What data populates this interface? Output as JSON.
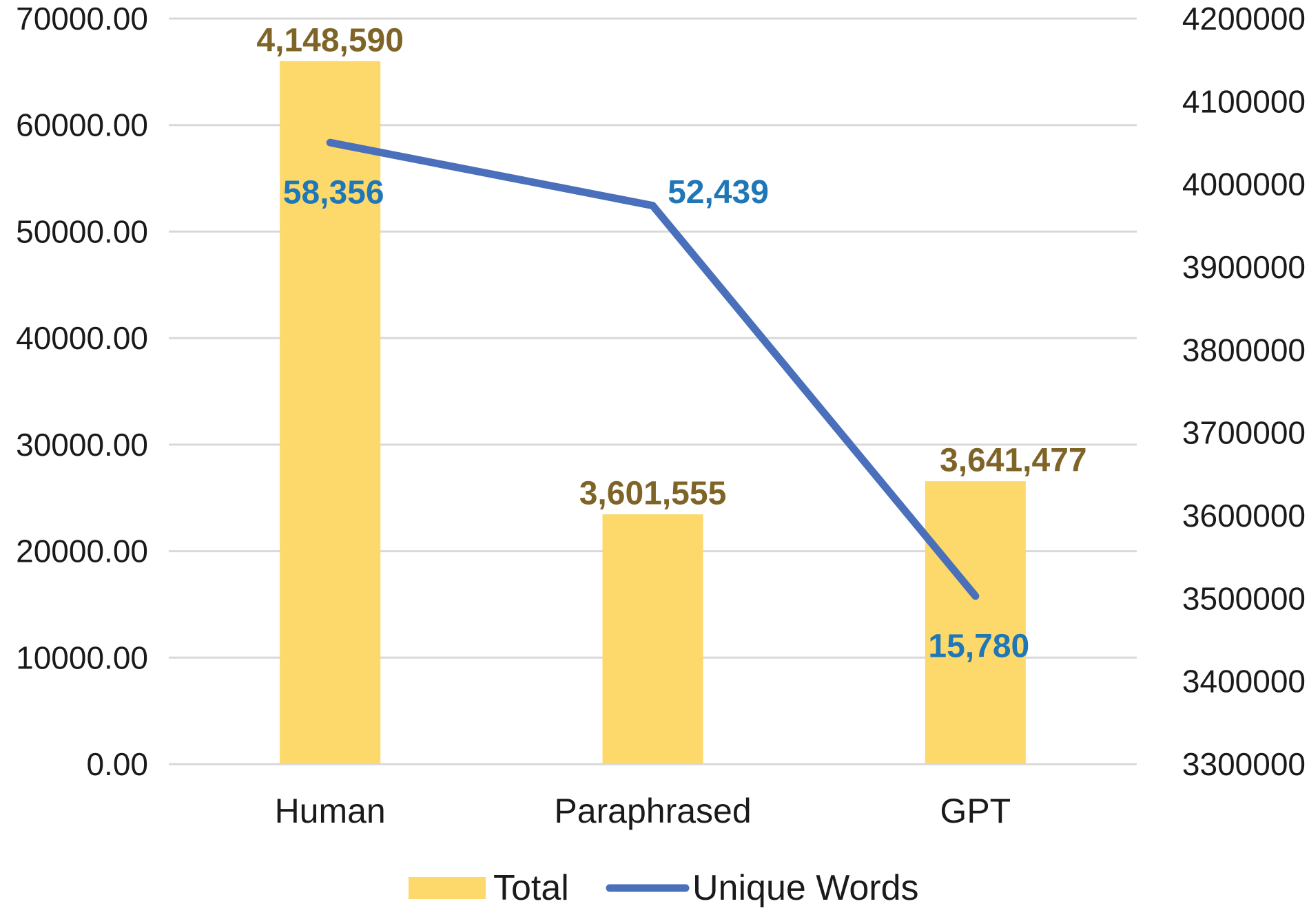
{
  "chart_data": {
    "type": "bar",
    "categories": [
      "Human",
      "Paraphrased",
      "GPT"
    ],
    "series": [
      {
        "name": "Total",
        "chart_type": "bar",
        "axis": "right",
        "values": [
          4148590,
          3601555,
          3641477
        ],
        "labels": [
          "4,148,590",
          "3,601,555",
          "3,641,477"
        ],
        "color": "#fdd96b",
        "label_color": "#7f6428"
      },
      {
        "name": "Unique Words",
        "chart_type": "line",
        "axis": "left",
        "values": [
          58356,
          52439,
          15780
        ],
        "labels": [
          "58,356",
          "52,439",
          "15,780"
        ],
        "color": "#4a6fbb",
        "label_color": "#1f77b8"
      }
    ],
    "y_left": {
      "range": [
        0,
        70000
      ],
      "ticks": [
        "0.00",
        "10000.00",
        "20000.00",
        "30000.00",
        "40000.00",
        "50000.00",
        "60000.00",
        "70000.00"
      ]
    },
    "y_right": {
      "range": [
        3300000,
        4200000
      ],
      "ticks": [
        "3300000",
        "3400000",
        "3500000",
        "3600000",
        "3700000",
        "3800000",
        "3900000",
        "4000000",
        "4100000",
        "4200000"
      ]
    },
    "grid": true,
    "legend": {
      "position": "bottom",
      "items": [
        "Total",
        "Unique Words"
      ]
    }
  }
}
